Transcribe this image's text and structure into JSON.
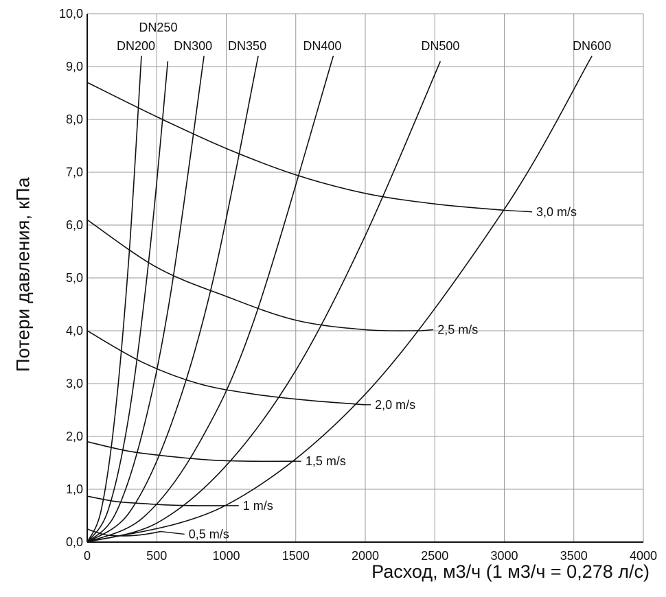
{
  "chart_data": {
    "type": "line",
    "title": "",
    "xlabel": "Расход, м3/ч (1 м3/ч = 0,278 л/с)",
    "ylabel": "Потери давления, кПа",
    "xlim": [
      0,
      4000
    ],
    "ylim": [
      0,
      10
    ],
    "grid": true,
    "x_ticks": [
      {
        "value": 0,
        "label": "0"
      },
      {
        "value": 500,
        "label": "500"
      },
      {
        "value": 1000,
        "label": "1000"
      },
      {
        "value": 1500,
        "label": "1500"
      },
      {
        "value": 2000,
        "label": "2000"
      },
      {
        "value": 2500,
        "label": "2500"
      },
      {
        "value": 3000,
        "label": "3000"
      },
      {
        "value": 3500,
        "label": "3500"
      },
      {
        "value": 4000,
        "label": "4000"
      }
    ],
    "y_ticks": [
      {
        "value": 0,
        "label": "0,0"
      },
      {
        "value": 1,
        "label": "1,0"
      },
      {
        "value": 2,
        "label": "2,0"
      },
      {
        "value": 3,
        "label": "3,0"
      },
      {
        "value": 4,
        "label": "4,0"
      },
      {
        "value": 5,
        "label": "5,0"
      },
      {
        "value": 6,
        "label": "6,0"
      },
      {
        "value": 7,
        "label": "7,0"
      },
      {
        "value": 8,
        "label": "8,0"
      },
      {
        "value": 9,
        "label": "9,0"
      },
      {
        "value": 10,
        "label": "10,0"
      }
    ],
    "pipe_series": [
      {
        "name": "DN200",
        "x": [
          0,
          100,
          200,
          300,
          390
        ],
        "y": [
          0,
          0.6,
          2.4,
          5.4,
          9.2
        ]
      },
      {
        "name": "DN250",
        "x": [
          0,
          150,
          300,
          450,
          580
        ],
        "y": [
          0,
          0.6,
          2.4,
          5.5,
          9.1
        ]
      },
      {
        "name": "DN300",
        "x": [
          0,
          200,
          400,
          600,
          840
        ],
        "y": [
          0,
          0.52,
          2.1,
          4.7,
          9.2
        ]
      },
      {
        "name": "DN350",
        "x": [
          0,
          300,
          600,
          900,
          1230
        ],
        "y": [
          0,
          0.55,
          2.2,
          4.9,
          9.2
        ]
      },
      {
        "name": "DN400",
        "x": [
          0,
          400,
          800,
          1200,
          1770
        ],
        "y": [
          0,
          0.46,
          1.85,
          4.2,
          9.2
        ]
      },
      {
        "name": "DN500",
        "x": [
          0,
          500,
          1000,
          1500,
          2000,
          2540
        ],
        "y": [
          0,
          0.36,
          1.45,
          3.25,
          5.8,
          9.1
        ]
      },
      {
        "name": "DN600",
        "x": [
          0,
          1000,
          2000,
          3000,
          3630
        ],
        "y": [
          0,
          0.7,
          2.8,
          6.3,
          9.2
        ]
      }
    ],
    "velocity_series": [
      {
        "name": "0,5 m/s",
        "x": [
          0,
          50,
          150,
          300,
          420,
          530
        ],
        "y": [
          0.25,
          0.2,
          0.13,
          0.12,
          0.15,
          0.2
        ]
      },
      {
        "name": "1 m/s",
        "x": [
          0,
          200,
          400,
          600,
          800,
          1000
        ],
        "y": [
          0.87,
          0.77,
          0.73,
          0.7,
          0.69,
          0.69
        ]
      },
      {
        "name": "1,5 m/s",
        "x": [
          0,
          300,
          600,
          900,
          1200,
          1500
        ],
        "y": [
          1.9,
          1.72,
          1.62,
          1.55,
          1.53,
          1.53
        ]
      },
      {
        "name": "2,0 m/s",
        "x": [
          0,
          400,
          800,
          1200,
          1600,
          2000
        ],
        "y": [
          4.0,
          3.4,
          3.0,
          2.8,
          2.68,
          2.6
        ]
      },
      {
        "name": "2,5 m/s",
        "x": [
          0,
          500,
          1000,
          1500,
          2000,
          2400
        ],
        "y": [
          6.1,
          5.2,
          4.65,
          4.2,
          4.02,
          4.0
        ]
      },
      {
        "name": "3,0 m/s",
        "x": [
          0,
          500,
          1000,
          1500,
          2000,
          2500,
          3000
        ],
        "y": [
          8.7,
          8.05,
          7.45,
          6.95,
          6.6,
          6.4,
          6.28
        ]
      }
    ],
    "velocity_label_anchor_x": [
      700,
      1090,
      1540,
      2040,
      2490,
      3200
    ],
    "velocity_label_anchor_y": [
      0.15,
      0.69,
      1.53,
      2.6,
      4.02,
      6.25
    ]
  }
}
